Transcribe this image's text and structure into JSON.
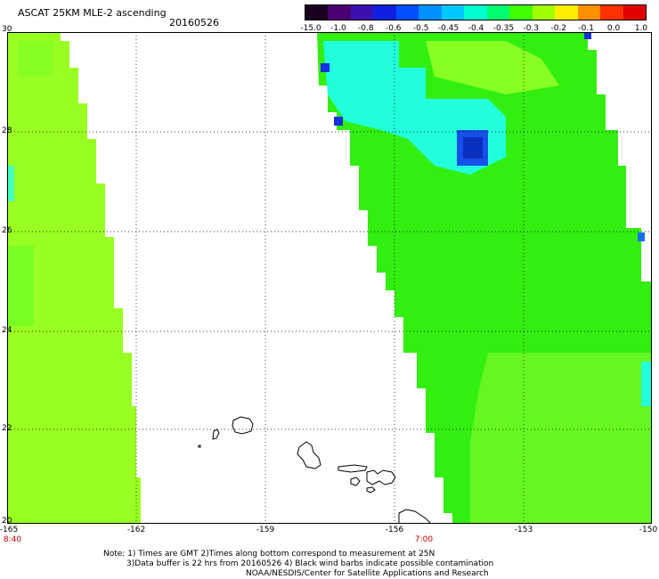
{
  "header": {
    "title": "ASCAT 25KM MLE-2 ascending",
    "date": "20160526"
  },
  "colorbar": {
    "labels": [
      "-15.0",
      "-1.0",
      "-0.8",
      "-0.6",
      "-0.5",
      "-0.45",
      "-0.4",
      "-0.35",
      "-0.3",
      "-0.2",
      "-0.1",
      "0.0",
      "1.0"
    ],
    "colors": [
      "#1a0020",
      "#4a0070",
      "#3a10b0",
      "#1020e0",
      "#0050ff",
      "#0090ff",
      "#00c8ff",
      "#00ffd0",
      "#00ff70",
      "#40ff00",
      "#a0ff00",
      "#ffee00",
      "#ff9000",
      "#ff3000",
      "#e00000"
    ]
  },
  "map": {
    "y_ticks": [
      "30",
      "28",
      "26",
      "24",
      "22",
      "20"
    ],
    "x_ticks": [
      "-165",
      "-162",
      "-159",
      "-156",
      "-153",
      "-150"
    ],
    "pass_times": [
      "8:40",
      "7:00"
    ],
    "swath_color": "#99ff22",
    "colors": {
      "green": "#33ee11",
      "cyan": "#22ffdd",
      "blue": "#1550e8",
      "gridline": "#000000",
      "coast": "#000000"
    }
  },
  "footer": {
    "line1": "Note: 1) Times are GMT 2)Times along bottom correspond to measurement at 25N",
    "line2": "3)Data buffer is 22 hrs from 20160526 4) Black wind barbs indicate possible contamination",
    "line3": "NOAA/NESDIS/Center for Satellite Applications and Research"
  }
}
